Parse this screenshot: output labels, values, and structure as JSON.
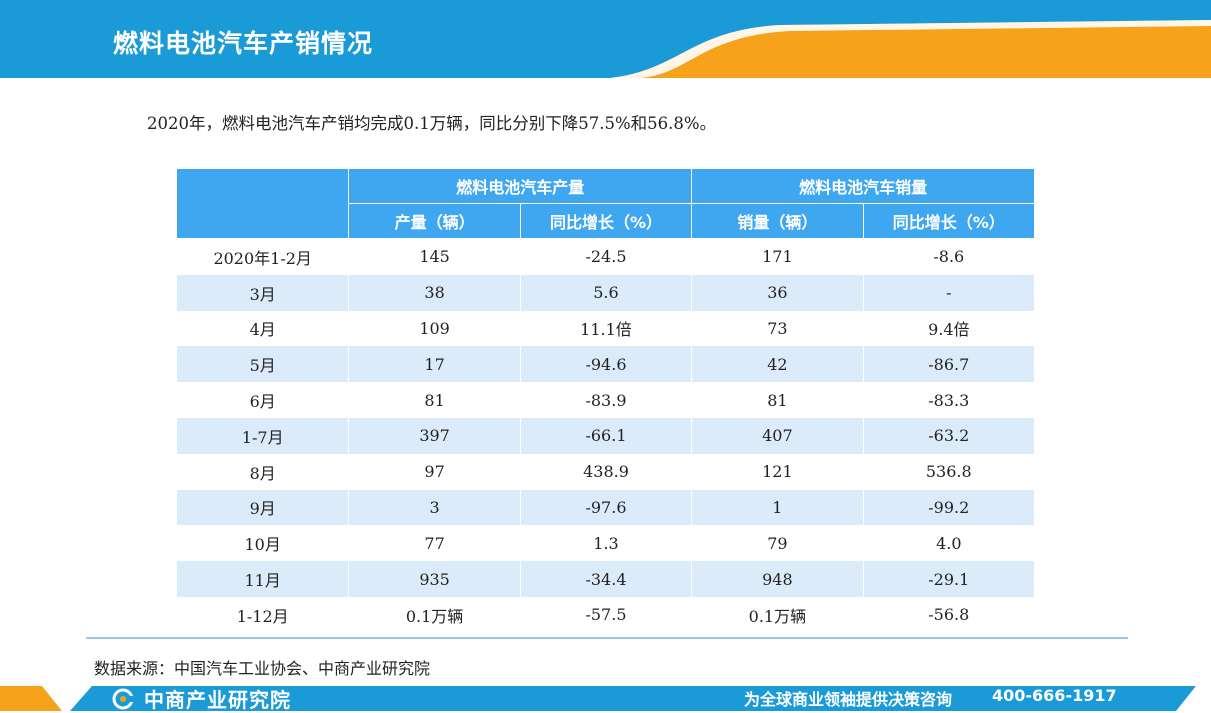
{
  "header": {
    "title": "燃料电池汽车产销情况"
  },
  "summary": "2020年，燃料电池汽车产销均完成0.1万辆，同比分别下降57.5%和56.8%。",
  "table": {
    "group_headers": [
      "燃料电池汽车产量",
      "燃料电池汽车销量"
    ],
    "sub_headers": [
      "产量（辆）",
      "同比增长（%）",
      "销量（辆）",
      "同比增长（%）"
    ],
    "rows": [
      [
        "2020年1-2月",
        "145",
        "-24.5",
        "171",
        "-8.6"
      ],
      [
        "3月",
        "38",
        "5.6",
        "36",
        "-"
      ],
      [
        "4月",
        "109",
        "11.1倍",
        "73",
        "9.4倍"
      ],
      [
        "5月",
        "17",
        "-94.6",
        "42",
        "-86.7"
      ],
      [
        "6月",
        "81",
        "-83.9",
        "81",
        "-83.3"
      ],
      [
        "1-7月",
        "397",
        "-66.1",
        "407",
        "-63.2"
      ],
      [
        "8月",
        "97",
        "438.9",
        "121",
        "536.8"
      ],
      [
        "9月",
        "3",
        "-97.6",
        "1",
        "-99.2"
      ],
      [
        "10月",
        "77",
        "1.3",
        "79",
        "4.0"
      ],
      [
        "11月",
        "935",
        "-34.4",
        "948",
        "-29.1"
      ],
      [
        "1-12月",
        "0.1万辆",
        "-57.5",
        "0.1万辆",
        "-56.8"
      ]
    ]
  },
  "source": "数据来源：中国汽车工业协会、中商产业研究院",
  "footer": {
    "logo_text": "中商产业研究院",
    "slogan": "为全球商业领袖提供决策咨询",
    "phone": "400-666-1917"
  },
  "colors": {
    "header_blue": "#1a9ad6",
    "accent_orange": "#f7a21b",
    "table_header": "#3fa7f0",
    "row_alt": "#dcebf9"
  }
}
